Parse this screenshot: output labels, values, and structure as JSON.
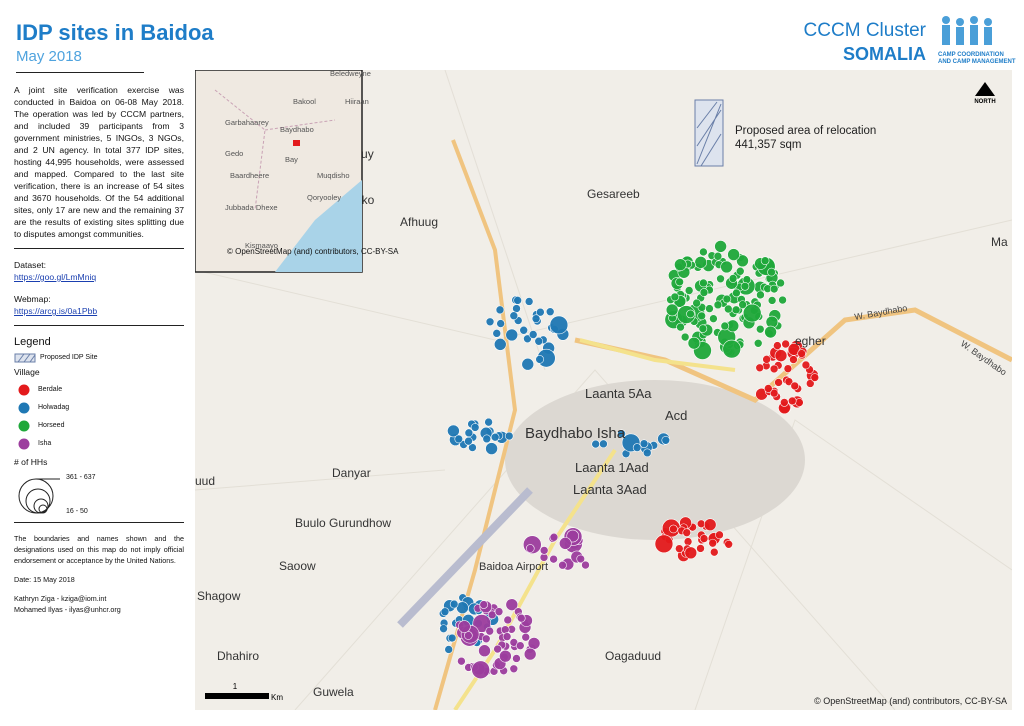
{
  "header": {
    "title": "IDP sites in Baidoa",
    "date": "May 2018",
    "org": "CCCM Cluster",
    "country": "SOMALIA",
    "logo_line1": "CAMP COORDINATION",
    "logo_line2": "AND CAMP MANAGEMENT"
  },
  "sidebar": {
    "description": "A joint site verification exercise was conducted in Baidoa on 06-08 May 2018. The operation was led by CCCM partners, and included 39 participants from 3 government ministries, 5 INGOs, 3 NGOs, and 2 UN agency. In total 377 IDP sites, hosting 44,995 households, were assessed and mapped. Compared to the last site verification, there is an increase of 54 sites and 3670 households. Of the 54 additional sites, only 17 are new and the remaining 37 are the results of existing sites splitting due to disputes amongst communities.",
    "dataset_label": "Dataset:",
    "dataset_link": "https://goo.gl/LmMniq",
    "webmap_label": "Webmap:",
    "webmap_link": "https://arcg.is/0a1Pbb",
    "legend_title": "Legend",
    "proposed_label": "Proposed IDP Site",
    "village_label": "Village",
    "villages": [
      {
        "name": "Berdale",
        "color": "#e31a1c"
      },
      {
        "name": "Holwadag",
        "color": "#1f78b4"
      },
      {
        "name": "Horseed",
        "color": "#1fa83a"
      },
      {
        "name": "Isha",
        "color": "#9c3d9e"
      }
    ],
    "hh_label": "# of HHs",
    "hh_max": "361 - 637",
    "hh_min": "16 - 50",
    "disclaimer": "The boundaries and names shown and the designations used on this map do not imply official endorsement or acceptance by the United Nations.",
    "map_date": "Date: 15 May 2018",
    "contact1": "Kathryn Ziga - kziga@iom.int",
    "contact2": "Mohamed Ilyas - ilyas@unhcr.org"
  },
  "map": {
    "inset": [
      "Beledweyne",
      "Bakool",
      "Hiiraan",
      "Garbahaarey",
      "Baydhabo",
      "Gedo",
      "Bay",
      "Muqdisho",
      "Baardheere",
      "Qoryooley",
      "Jubbada Dhexe",
      "Kismaayo",
      "© OpenStreetMap (and) contributors, CC-BY-SA"
    ],
    "places": [
      "lbuuy",
      "uko",
      "Afhuug",
      "Gesareeb",
      "Ma",
      "Laanta 5Aa",
      "Acd",
      "Baydhabo Isha",
      "Laanta 1Aad",
      "Laanta 3Aad",
      "Danyar",
      "uud",
      "Buulo Gurundhow",
      "Saoow",
      "Shagow",
      "Dhahiro",
      "Guwela",
      "Oagaduud",
      "Baidoa Airport",
      "egher"
    ],
    "roads": [
      "W. Baydhabo",
      "W. Baydhabo"
    ],
    "relocation_line1": "Proposed area of relocation",
    "relocation_line2": "441,357 sqm",
    "north": "NORTH",
    "scale_value": "1",
    "scale_unit": "Km",
    "attribution": "© OpenStreetMap (and) contributors, CC-BY-SA"
  }
}
